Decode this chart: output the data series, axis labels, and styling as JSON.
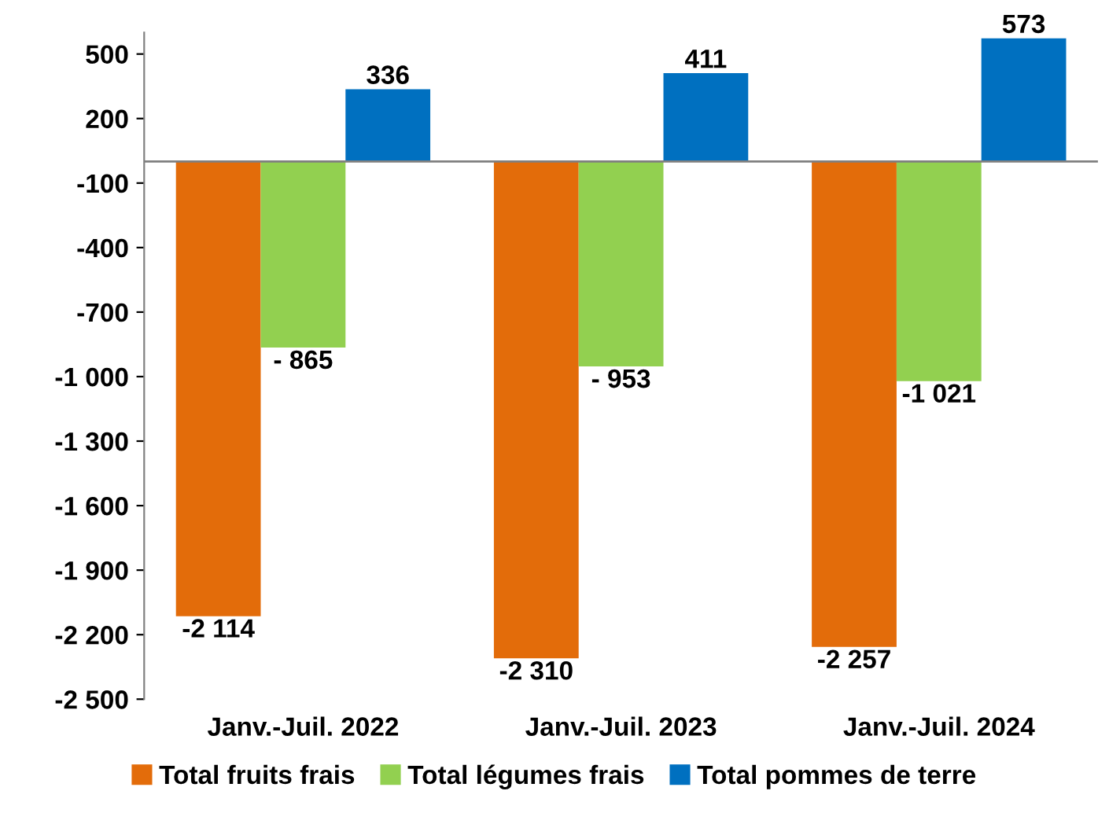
{
  "chart_data": {
    "type": "bar",
    "categories": [
      "Janv.-Juil. 2022",
      "Janv.-Juil. 2023",
      "Janv.-Juil. 2024"
    ],
    "series": [
      {
        "name": "Total fruits frais",
        "color": "#e36c0a",
        "values": [
          -2114,
          -2310,
          -2257
        ],
        "value_labels": [
          "-2 114",
          "-2 310",
          "-2 257"
        ]
      },
      {
        "name": "Total légumes frais",
        "color": "#92d050",
        "values": [
          -865,
          -953,
          -1021
        ],
        "value_labels": [
          "- 865",
          "- 953",
          "-1 021"
        ]
      },
      {
        "name": "Total pommes de terre",
        "color": "#0070c0",
        "values": [
          336,
          411,
          573
        ],
        "value_labels": [
          "336",
          "411",
          "573"
        ]
      }
    ],
    "ylim": [
      -2500,
      600
    ],
    "yticks": [
      500,
      200,
      -100,
      -400,
      -700,
      {
        "value": -1000,
        "label": "-1 000"
      },
      {
        "value": -1300,
        "label": "-1 300"
      },
      {
        "value": -1600,
        "label": "-1 600"
      },
      {
        "value": -1900,
        "label": "-1 900"
      },
      {
        "value": -2200,
        "label": "-2 200"
      },
      {
        "value": -2500,
        "label": "-2 500"
      }
    ],
    "grid": false,
    "legend": "bottom"
  }
}
